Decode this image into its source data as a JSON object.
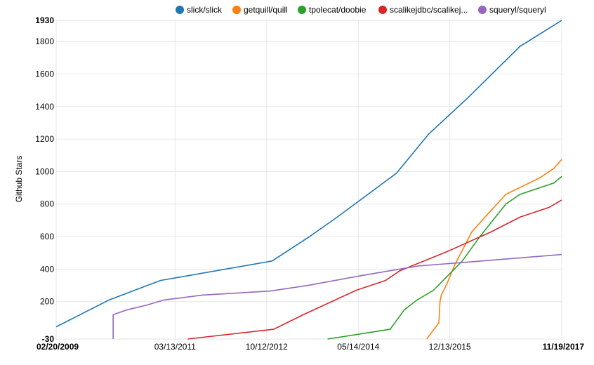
{
  "chart_data": {
    "type": "line",
    "ylabel": "Github Stars",
    "ylim": [
      -30,
      1930
    ],
    "yticks": [
      -30,
      200,
      400,
      600,
      800,
      1000,
      1200,
      1400,
      1600,
      1800,
      1930
    ],
    "xlim": [
      "2009-02-20",
      "2017-11-19"
    ],
    "xticks": [
      {
        "date": "2009-02-20",
        "label": "02/20/2009",
        "bold": true
      },
      {
        "date": "2011-03-13",
        "label": "03/13/2011",
        "bold": false
      },
      {
        "date": "2012-10-12",
        "label": "10/12/2012",
        "bold": false
      },
      {
        "date": "2014-05-14",
        "label": "05/14/2014",
        "bold": false
      },
      {
        "date": "2015-12-13",
        "label": "12/13/2015",
        "bold": false
      },
      {
        "date": "2017-11-19",
        "label": "11/19/2017",
        "bold": true
      }
    ],
    "grid": true,
    "legend_position": "top",
    "series": [
      {
        "name": "slick/slick",
        "color": "#1f77b4",
        "points": [
          [
            "2009-02-20",
            45
          ],
          [
            "2010-01-20",
            210
          ],
          [
            "2010-12-10",
            330
          ],
          [
            "2012-11-15",
            450
          ],
          [
            "2013-07-10",
            600
          ],
          [
            "2014-01-01",
            720
          ],
          [
            "2015-01-10",
            990
          ],
          [
            "2015-08-01",
            1230
          ],
          [
            "2016-04-01",
            1450
          ],
          [
            "2017-03-01",
            1770
          ],
          [
            "2017-11-19",
            1930
          ]
        ]
      },
      {
        "name": "getquill/quill",
        "color": "#ff7f0e",
        "points": [
          [
            "2015-07-20",
            -30
          ],
          [
            "2015-10-05",
            70
          ],
          [
            "2015-10-12",
            200
          ],
          [
            "2015-10-20",
            240
          ],
          [
            "2015-11-25",
            310
          ],
          [
            "2016-01-15",
            430
          ],
          [
            "2016-05-01",
            630
          ],
          [
            "2016-08-01",
            730
          ],
          [
            "2016-12-01",
            860
          ],
          [
            "2017-07-01",
            960
          ],
          [
            "2017-10-01",
            1020
          ],
          [
            "2017-11-19",
            1075
          ]
        ]
      },
      {
        "name": "tpolecat/doobie",
        "color": "#2ca02c",
        "points": [
          [
            "2013-11-01",
            -30
          ],
          [
            "2014-12-01",
            30
          ],
          [
            "2015-03-01",
            150
          ],
          [
            "2015-05-20",
            210
          ],
          [
            "2015-09-01",
            270
          ],
          [
            "2016-03-01",
            450
          ],
          [
            "2016-06-20",
            600
          ],
          [
            "2016-12-01",
            800
          ],
          [
            "2017-03-01",
            860
          ],
          [
            "2017-10-01",
            930
          ],
          [
            "2017-11-19",
            970
          ]
        ]
      },
      {
        "name": "scalikejdbc/scalikej...",
        "color": "#d62728",
        "points": [
          [
            "2011-06-01",
            -30
          ],
          [
            "2012-11-25",
            30
          ],
          [
            "2013-06-01",
            120
          ],
          [
            "2014-05-01",
            270
          ],
          [
            "2014-11-01",
            330
          ],
          [
            "2015-02-01",
            390
          ],
          [
            "2015-12-01",
            510
          ],
          [
            "2016-09-01",
            630
          ],
          [
            "2017-03-01",
            720
          ],
          [
            "2017-09-01",
            780
          ],
          [
            "2017-11-19",
            825
          ]
        ]
      },
      {
        "name": "squeryl/squeryl",
        "color": "#9467bd",
        "points": [
          [
            "2010-02-15",
            -30
          ],
          [
            "2010-02-15",
            120
          ],
          [
            "2010-05-15",
            150
          ],
          [
            "2010-09-20",
            180
          ],
          [
            "2011-01-01",
            210
          ],
          [
            "2011-09-01",
            240
          ],
          [
            "2012-11-01",
            265
          ],
          [
            "2013-07-01",
            300
          ],
          [
            "2014-06-01",
            360
          ],
          [
            "2015-06-01",
            420
          ],
          [
            "2016-05-01",
            445
          ],
          [
            "2017-11-19",
            490
          ]
        ]
      }
    ]
  }
}
